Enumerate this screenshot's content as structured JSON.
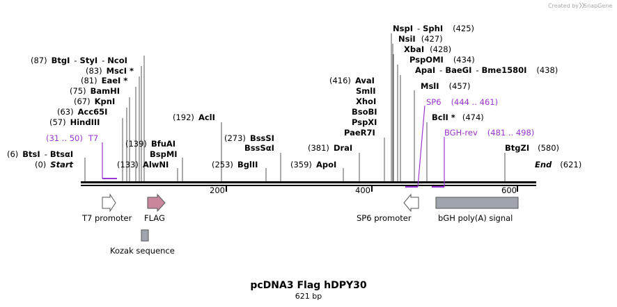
{
  "credit": {
    "text": "Created by",
    "brand": "SnapGene"
  },
  "title": "pcDNA3 Flag hDPY30",
  "length_label": "621 bp",
  "axis": {
    "min": 0,
    "max": 621,
    "ticks": [
      {
        "value": 200,
        "label": "200"
      },
      {
        "value": 400,
        "label": "400"
      },
      {
        "value": 600,
        "label": "600"
      }
    ]
  },
  "ends": [
    {
      "id": "start",
      "pos": "(0)",
      "name": "Start"
    },
    {
      "id": "end",
      "pos": "(621)",
      "name": "End"
    }
  ],
  "sites": {
    "s1": {
      "pos": "(6)",
      "name": "BtsI",
      "name2": "BtsαI"
    },
    "s2": {
      "pos": "(57)",
      "name": "HindIII"
    },
    "s3": {
      "pos": "(63)",
      "name": "Acc65I"
    },
    "s4": {
      "pos": "(67)",
      "name": "KpnI"
    },
    "s5": {
      "pos": "(75)",
      "name": "BamHI"
    },
    "s6": {
      "pos": "(81)",
      "name": "EaeI *"
    },
    "s7": {
      "pos": "(83)",
      "name": "MscI *"
    },
    "s8": {
      "pos": "(87)",
      "name": "BtgI",
      "name2": "StyI",
      "name3": "NcoI"
    },
    "s9": {
      "pos": "(133)",
      "name": "AlwNI"
    },
    "s10": {
      "pos": "(139)",
      "name": "BfuAI"
    },
    "s11": {
      "name": "BspMI"
    },
    "s12": {
      "pos": "(192)",
      "name": "AclI"
    },
    "s13": {
      "pos": "(253)",
      "name": "BglII"
    },
    "s14": {
      "pos": "(273)",
      "name": "BssSI"
    },
    "s15": {
      "name": "BssSαI"
    },
    "s16": {
      "pos": "(359)",
      "name": "ApoI"
    },
    "s17": {
      "pos": "(381)",
      "name": "DraI"
    },
    "s18": {
      "pos": "(416)",
      "name": "AvaI"
    },
    "s19": {
      "name": "SmlI"
    },
    "s20": {
      "name": "XhoI"
    },
    "s21": {
      "name": "BsoBI"
    },
    "s22": {
      "name": "PspXI"
    },
    "s23": {
      "name": "PaeR7I"
    },
    "s24": {
      "pos": "(425)",
      "name": "NspI",
      "name2": "SphI"
    },
    "s25": {
      "pos": "(427)",
      "name": "NsiI"
    },
    "s26": {
      "pos": "(428)",
      "name": "XbaI"
    },
    "s27": {
      "pos": "(434)",
      "name": "PspOMI"
    },
    "s28": {
      "pos": "(438)",
      "name": "ApaI",
      "name2": "BaeGI",
      "name3": "Bme1580I"
    },
    "s29": {
      "pos": "(457)",
      "name": "MslI"
    },
    "s30": {
      "pos": "(474)",
      "name": "BclI *"
    },
    "s31": {
      "pos": "(580)",
      "name": "BtgZI"
    }
  },
  "primers": {
    "t7": {
      "name": "T7",
      "range": "(31 .. 50)",
      "start": 31,
      "end": 50
    },
    "sp6": {
      "name": "SP6",
      "range": "(444 .. 461)",
      "start": 444,
      "end": 461
    },
    "bgh": {
      "name": "BGH-rev",
      "range": "(481 .. 498)",
      "start": 481,
      "end": 498
    }
  },
  "features": {
    "t7prom": {
      "label": "T7 promoter",
      "color": "#ffffff"
    },
    "flag": {
      "label": "FLAG",
      "color": "#c8879b"
    },
    "kozak": {
      "label": "Kozak sequence",
      "color": "#a0a4ad"
    },
    "sp6prom": {
      "label": "SP6 promoter",
      "color": "#ffffff"
    },
    "bgh": {
      "label": "bGH poly(A) signal",
      "color": "#a0a4ad"
    }
  },
  "colors": {
    "primer": "#9a34d0",
    "backbone": "#000000",
    "leader": "#555555"
  }
}
